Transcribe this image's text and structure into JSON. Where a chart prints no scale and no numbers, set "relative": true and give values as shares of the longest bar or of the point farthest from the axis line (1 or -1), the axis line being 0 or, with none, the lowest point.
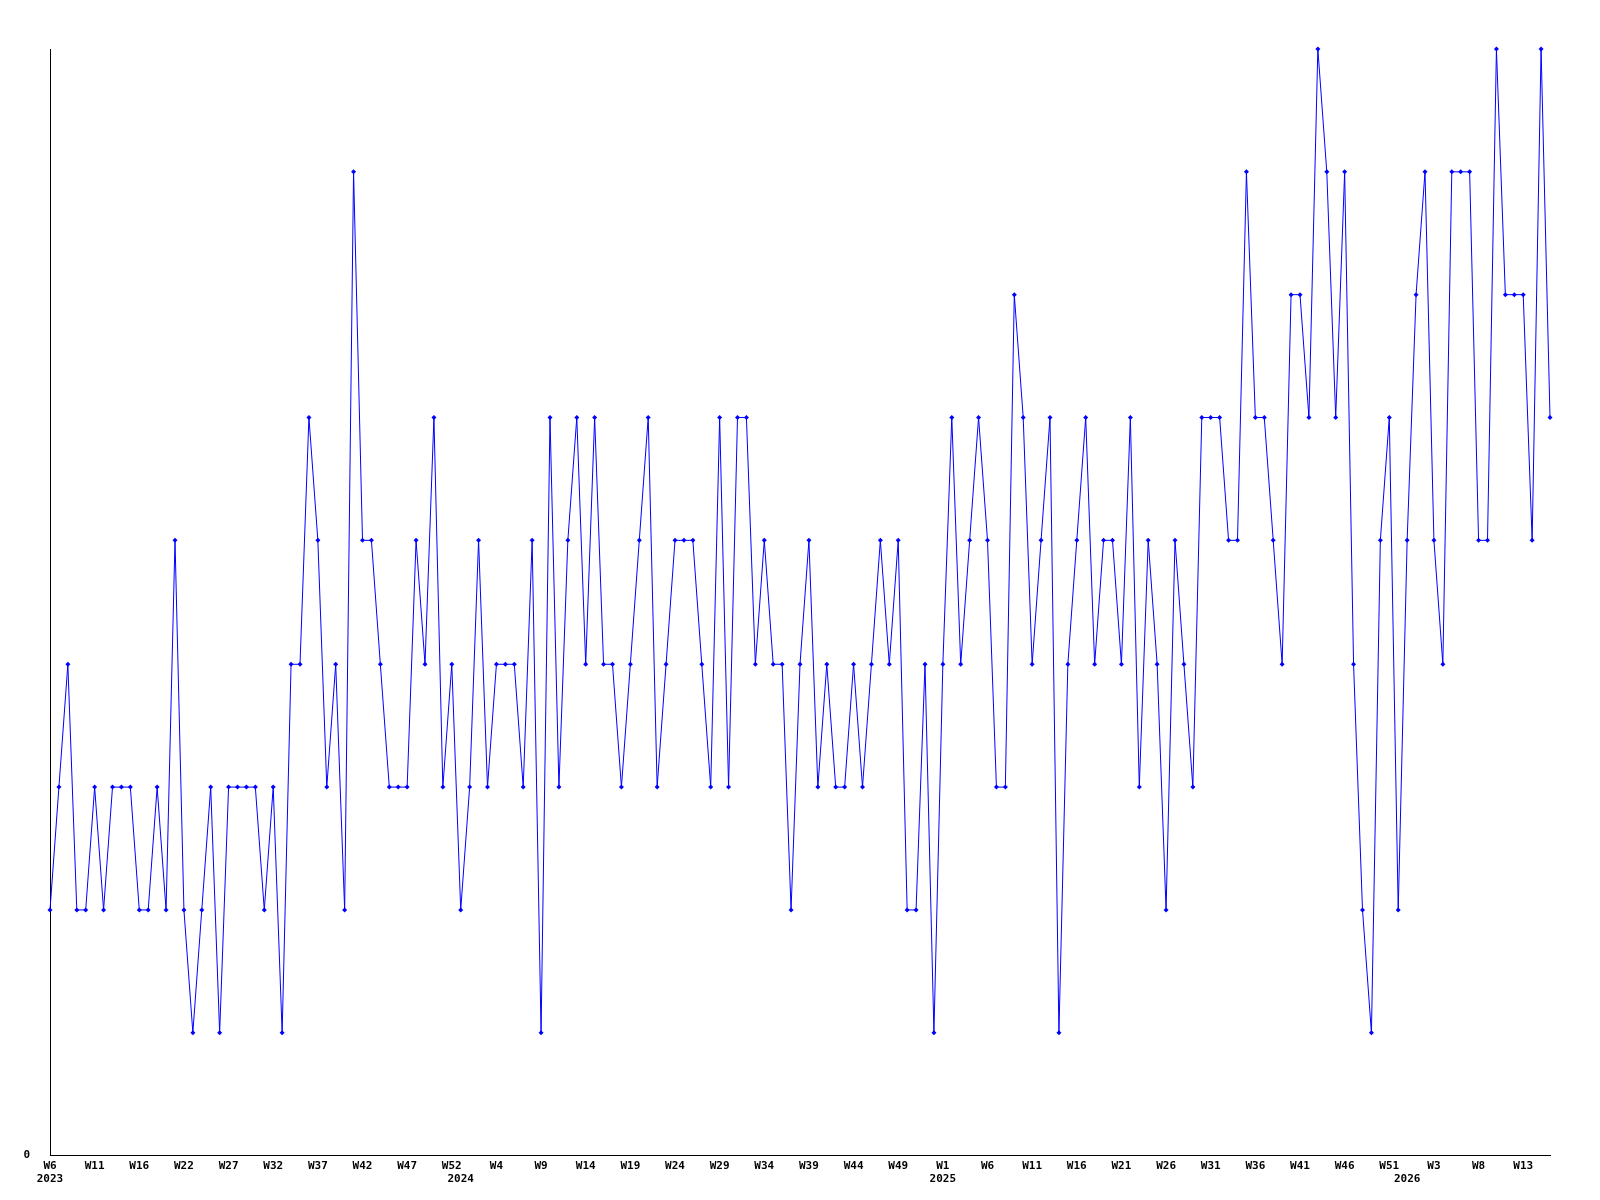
{
  "chart_data": {
    "type": "line",
    "relative": true,
    "grid": false,
    "legend": false,
    "marker": "diamond",
    "line_style": "solid",
    "annotations": [
      "0"
    ],
    "categories": [
      "W6\n2023",
      null,
      null,
      null,
      null,
      "W11",
      null,
      null,
      null,
      null,
      "W16",
      null,
      null,
      null,
      null,
      "W22",
      null,
      null,
      null,
      null,
      "W27",
      null,
      null,
      null,
      null,
      "W32",
      null,
      null,
      null,
      null,
      "W37",
      null,
      null,
      null,
      null,
      "W42",
      null,
      null,
      null,
      null,
      "W47",
      null,
      null,
      null,
      null,
      "W52",
      "\n2024",
      null,
      null,
      null,
      "W4",
      null,
      null,
      null,
      null,
      "W9",
      null,
      null,
      null,
      null,
      "W14",
      null,
      null,
      null,
      null,
      "W19",
      null,
      null,
      null,
      null,
      "W24",
      null,
      null,
      null,
      null,
      "W29",
      null,
      null,
      null,
      null,
      "W34",
      null,
      null,
      null,
      null,
      "W39",
      null,
      null,
      null,
      null,
      "W44",
      null,
      null,
      null,
      null,
      "W49",
      null,
      null,
      null,
      null,
      "W1\n2025",
      null,
      null,
      null,
      null,
      "W6",
      null,
      null,
      null,
      null,
      "W11",
      null,
      null,
      null,
      null,
      "W16",
      null,
      null,
      null,
      null,
      "W21",
      null,
      null,
      null,
      null,
      "W26",
      null,
      null,
      null,
      null,
      "W31",
      null,
      null,
      null,
      null,
      "W36",
      null,
      null,
      null,
      null,
      "W41",
      null,
      null,
      null,
      null,
      "W46",
      null,
      null,
      null,
      null,
      "W51",
      null,
      "\n2026",
      null,
      null,
      "W3",
      null,
      null,
      null,
      null,
      "W8",
      null,
      null,
      null,
      null,
      "W13",
      null,
      null,
      null
    ],
    "series": [
      {
        "color": "#0000ff",
        "values": [
          0.222,
          0.333,
          0.444,
          0.222,
          0.222,
          0.333,
          0.222,
          0.333,
          0.333,
          0.333,
          0.222,
          0.222,
          0.333,
          0.222,
          0.556,
          0.222,
          0.111,
          0.222,
          0.333,
          0.111,
          0.333,
          0.333,
          0.333,
          0.333,
          0.222,
          0.333,
          0.111,
          0.444,
          0.444,
          0.667,
          0.556,
          0.333,
          0.444,
          0.222,
          0.889,
          0.556,
          0.556,
          0.444,
          0.333,
          0.333,
          0.333,
          0.556,
          0.444,
          0.667,
          0.333,
          0.444,
          0.222,
          0.333,
          0.556,
          0.333,
          0.444,
          0.444,
          0.444,
          0.333,
          0.556,
          0.111,
          0.667,
          0.333,
          0.556,
          0.667,
          0.444,
          0.667,
          0.444,
          0.444,
          0.333,
          0.444,
          0.556,
          0.667,
          0.333,
          0.444,
          0.556,
          0.556,
          0.556,
          0.444,
          0.333,
          0.667,
          0.333,
          0.667,
          0.667,
          0.444,
          0.556,
          0.444,
          0.444,
          0.222,
          0.444,
          0.556,
          0.333,
          0.444,
          0.333,
          0.333,
          0.444,
          0.333,
          0.444,
          0.556,
          0.444,
          0.556,
          0.222,
          0.222,
          0.444,
          0.111,
          0.444,
          0.667,
          0.444,
          0.556,
          0.667,
          0.556,
          0.333,
          0.333,
          0.778,
          0.667,
          0.444,
          0.556,
          0.667,
          0.111,
          0.444,
          0.556,
          0.667,
          0.444,
          0.556,
          0.556,
          0.444,
          0.667,
          0.333,
          0.556,
          0.444,
          0.222,
          0.556,
          0.444,
          0.333,
          0.667,
          0.667,
          0.667,
          0.556,
          0.556,
          0.889,
          0.667,
          0.667,
          0.556,
          0.444,
          0.778,
          0.778,
          0.667,
          1,
          0.889,
          0.667,
          0.889,
          0.444,
          0.222,
          0.111,
          0.556,
          0.667,
          0.222,
          0.556,
          0.778,
          0.889,
          0.556,
          0.444,
          0.889,
          0.889,
          0.889,
          0.556,
          0.556,
          1,
          0.778,
          0.778,
          0.778,
          0.556,
          1,
          0.667
        ]
      }
    ]
  }
}
